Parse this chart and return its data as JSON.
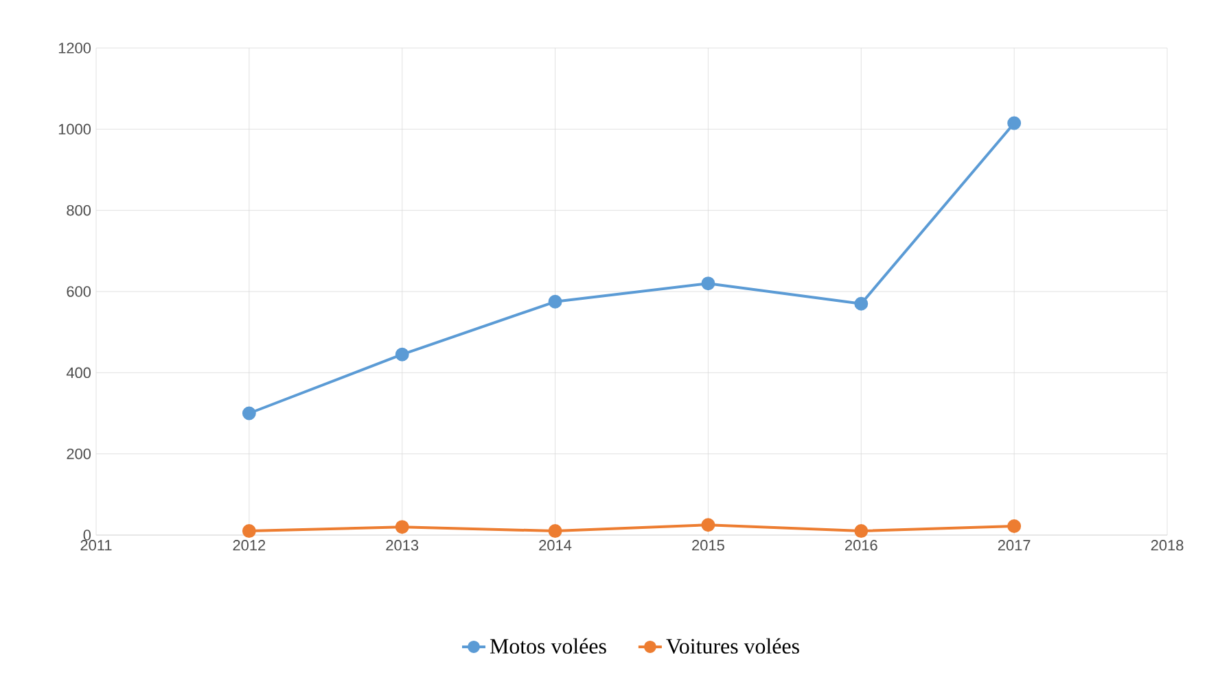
{
  "chart_data": {
    "type": "line",
    "x": [
      2012,
      2013,
      2014,
      2015,
      2016,
      2017
    ],
    "xlim": [
      2011,
      2018
    ],
    "xticks": [
      2011,
      2012,
      2013,
      2014,
      2015,
      2016,
      2017,
      2018
    ],
    "ylim": [
      0,
      1200
    ],
    "yticks": [
      0,
      200,
      400,
      600,
      800,
      1000,
      1200
    ],
    "grid": true,
    "legend": "bottom",
    "marker": "circle",
    "line_style": "solid",
    "series": [
      {
        "name": "Motos volées",
        "color": "#5b9bd5",
        "values": [
          300,
          445,
          575,
          620,
          570,
          1015
        ]
      },
      {
        "name": "Voitures volées",
        "color": "#ed7d31",
        "values": [
          10,
          20,
          10,
          25,
          10,
          22
        ]
      }
    ]
  }
}
